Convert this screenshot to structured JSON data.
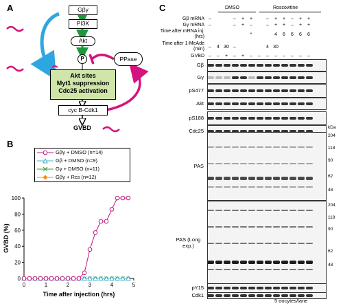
{
  "panels": {
    "a": "A",
    "b": "B",
    "c": "C"
  },
  "panel_a": {
    "gbg": "Gβγ",
    "pi3k": "PI3K",
    "akt": "Akt",
    "p": "P",
    "ppase": "PPase",
    "akt_sites": "Akt sites",
    "myt1": "Myt1 suppression",
    "cdc25": "Cdc25 activation",
    "cycb": "cyc B-Cdk1",
    "gvbd": "GVBD",
    "question": "?"
  },
  "panel_b": {
    "legend": [
      "Gβγ + DMSO (n=14)",
      "Gβ + DMSO (n=9)",
      "Gγ + DMSO (n=11)",
      "Gβγ + Rcs (n=12)"
    ],
    "ylabel": "GVBD (%)",
    "xlabel": "Time after injection (hrs)",
    "colors": [
      "#c0187f",
      "#46b0c9",
      "#3c9a3c",
      "#f08c1e"
    ],
    "icon_names": [
      "circle-marker-icon",
      "triangle-marker-icon",
      "cross-marker-icon",
      "diamond-marker-icon"
    ]
  },
  "chart_data": {
    "type": "line",
    "xlabel": "Time after injection (hrs)",
    "ylabel": "GVBD (%)",
    "xlim": [
      0,
      5
    ],
    "ylim": [
      0,
      100
    ],
    "xticks": [
      0,
      1,
      2,
      3,
      4,
      5
    ],
    "yticks": [
      0,
      20,
      40,
      60,
      80,
      100
    ],
    "series": [
      {
        "name": "Gβγ + DMSO (n=14)",
        "x": [
          0,
          0.25,
          0.5,
          0.75,
          1,
          1.25,
          1.5,
          1.75,
          2,
          2.25,
          2.5,
          2.75,
          3,
          3.25,
          3.5,
          3.75,
          4,
          4.25,
          4.5,
          4.75
        ],
        "y": [
          0,
          0,
          0,
          0,
          0,
          0,
          0,
          0,
          0,
          0,
          0,
          7,
          36,
          57,
          71,
          71,
          86,
          100,
          100,
          100
        ]
      },
      {
        "name": "Gβ + DMSO (n=9)",
        "x": [
          0,
          0.25,
          0.5,
          0.75,
          1,
          1.25,
          1.5,
          1.75,
          2,
          2.25,
          2.5,
          2.75,
          3,
          3.25,
          3.5,
          3.75,
          4,
          4.25,
          4.5,
          4.75
        ],
        "y": [
          0,
          0,
          0,
          0,
          0,
          0,
          0,
          0,
          0,
          0,
          0,
          0,
          0,
          0,
          0,
          0,
          0,
          0,
          0,
          0
        ]
      },
      {
        "name": "Gγ + DMSO (n=11)",
        "x": [
          0,
          0.25,
          0.5,
          0.75,
          1,
          1.25,
          1.5,
          1.75,
          2,
          2.25,
          2.5,
          2.75,
          3,
          3.25,
          3.5,
          3.75,
          4,
          4.25,
          4.5,
          4.75
        ],
        "y": [
          0,
          0,
          0,
          0,
          0,
          0,
          0,
          0,
          0,
          0,
          0,
          0,
          0,
          0,
          0,
          0,
          0,
          0,
          0,
          0
        ]
      },
      {
        "name": "Gβγ + Rcs (n=12)",
        "x": [
          0,
          0.25,
          0.5,
          0.75,
          1,
          1.25,
          1.5,
          1.75,
          2,
          2.25,
          2.5,
          2.75,
          3,
          3.25,
          3.5,
          3.75,
          4,
          4.25,
          4.5,
          4.75
        ],
        "y": [
          0,
          0,
          0,
          0,
          0,
          0,
          0,
          0,
          0,
          0,
          0,
          0,
          0,
          0,
          0,
          0,
          0,
          0,
          0,
          0
        ]
      }
    ]
  },
  "panel_c": {
    "group_dmso": "DMSO",
    "group_rosco": "Roscovitine",
    "hdr_gb": "Gβ mRNA",
    "hdr_gg": "Gγ mRNA",
    "hdr_time_mrna": "Time after mRNA inj. (hrs)",
    "hdr_time_1me": "Time after 1-MeAde (min)",
    "hdr_gvbd": "GVBD",
    "row_gb": [
      "–",
      "",
      "",
      "–",
      "+",
      "+",
      "",
      "–",
      "+",
      "+",
      "–",
      "+",
      "+"
    ],
    "row_gg": [
      "–",
      "",
      "",
      "–",
      "+",
      "–",
      "",
      "–",
      "+",
      "+",
      "–",
      "+",
      "+"
    ],
    "row_timemrna": [
      "",
      "",
      "",
      "",
      "",
      "*",
      "",
      "",
      "4",
      "6",
      "6",
      "6",
      "6"
    ],
    "row_time1me": [
      "–",
      "4",
      "30",
      "–",
      "",
      "",
      "",
      "4",
      "30",
      "",
      "",
      "",
      ""
    ],
    "row_gvbd": [
      "–",
      "–",
      "+",
      "–",
      "+",
      "–",
      "–",
      "–",
      "–",
      "–",
      "–",
      "–",
      "–"
    ],
    "blots": [
      "Gβ",
      "Gγ",
      "pS477",
      "Akt",
      "pS188",
      "Cdc25",
      "PAS",
      "PAS (Long exp.)",
      "pY15",
      "Cdk1"
    ],
    "kda_label": "kDa",
    "kda_top": [
      "204",
      "118",
      "90",
      "62",
      "48"
    ],
    "kda_bottom": [
      "204",
      "118",
      "90",
      "62",
      "48"
    ],
    "footer": "5 oocytes/lane"
  }
}
